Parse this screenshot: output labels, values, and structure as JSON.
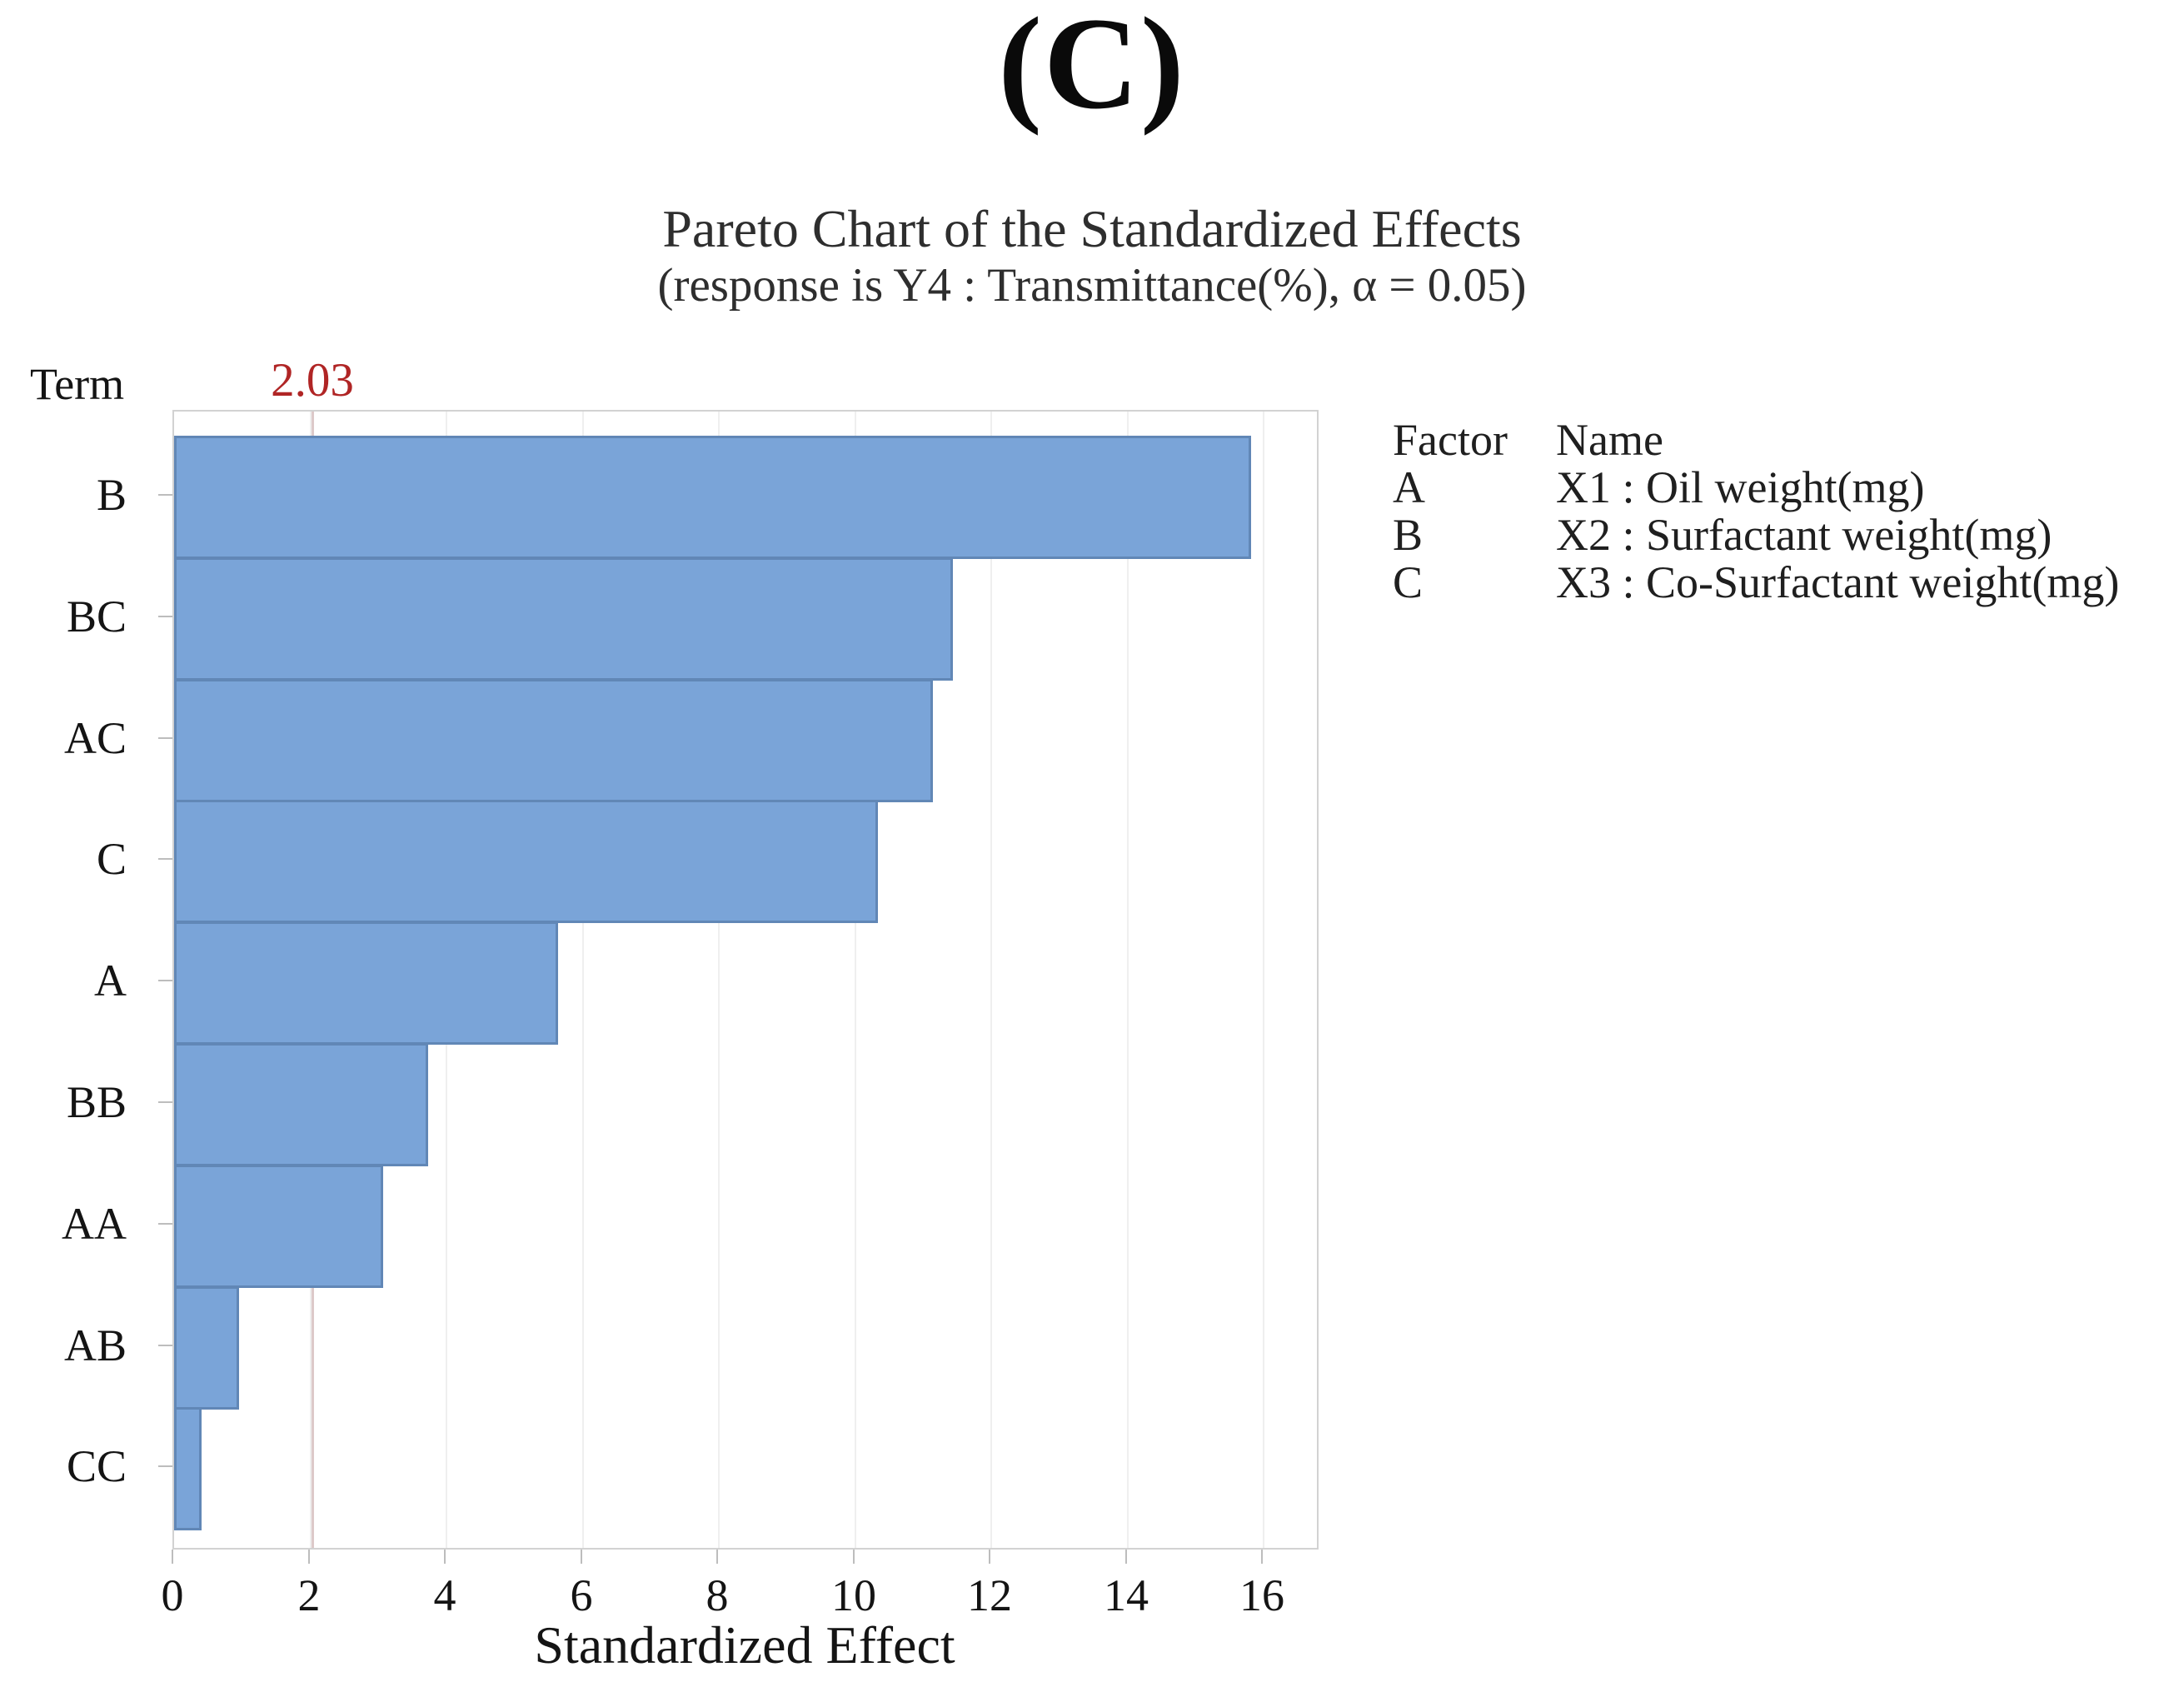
{
  "figure_label": "(C)",
  "chart": {
    "title": "Pareto Chart of the Standardized Effects",
    "subtitle": "(response is Y4 : Transmittance(%), α = 0.05)",
    "y_axis_title": "Term",
    "x_axis_title": "Standardized Effect",
    "reference_label": "2.03"
  },
  "chart_data": {
    "type": "bar",
    "orientation": "horizontal",
    "categories": [
      "B",
      "BC",
      "AC",
      "C",
      "A",
      "BB",
      "AA",
      "AB",
      "CC"
    ],
    "values": [
      15.82,
      11.44,
      11.14,
      10.34,
      5.64,
      3.73,
      3.07,
      0.95,
      0.4
    ],
    "title": "Pareto Chart of the Standardized Effects",
    "subtitle": "(response is Y4 : Transmittance(%), α = 0.05)",
    "xlabel": "Standardized Effect",
    "ylabel": "Term",
    "xlim": [
      0,
      16.83
    ],
    "xticks": [
      0,
      2,
      4,
      6,
      8,
      10,
      12,
      14,
      16
    ],
    "reference_value": 2.03,
    "grid": "vertical-light",
    "legend_position": "right"
  },
  "colors": {
    "bar_fill": "#7aa4d8",
    "bar_border": "#6187b6",
    "reference_label": "#b02525",
    "reference_line": "#ddc9c9",
    "gridline": "#efefef",
    "axis_frame": "#d2d2d2",
    "tick": "#bdbdbd",
    "text": "#141414"
  },
  "legend": {
    "headers": {
      "factor": "Factor",
      "name": "Name"
    },
    "rows": [
      {
        "factor": "A",
        "name": "X1 : Oil weight(mg)"
      },
      {
        "factor": "B",
        "name": "X2 : Surfactant weight(mg)"
      },
      {
        "factor": "C",
        "name": "X3 : Co-Surfactant weight(mg)"
      }
    ]
  }
}
